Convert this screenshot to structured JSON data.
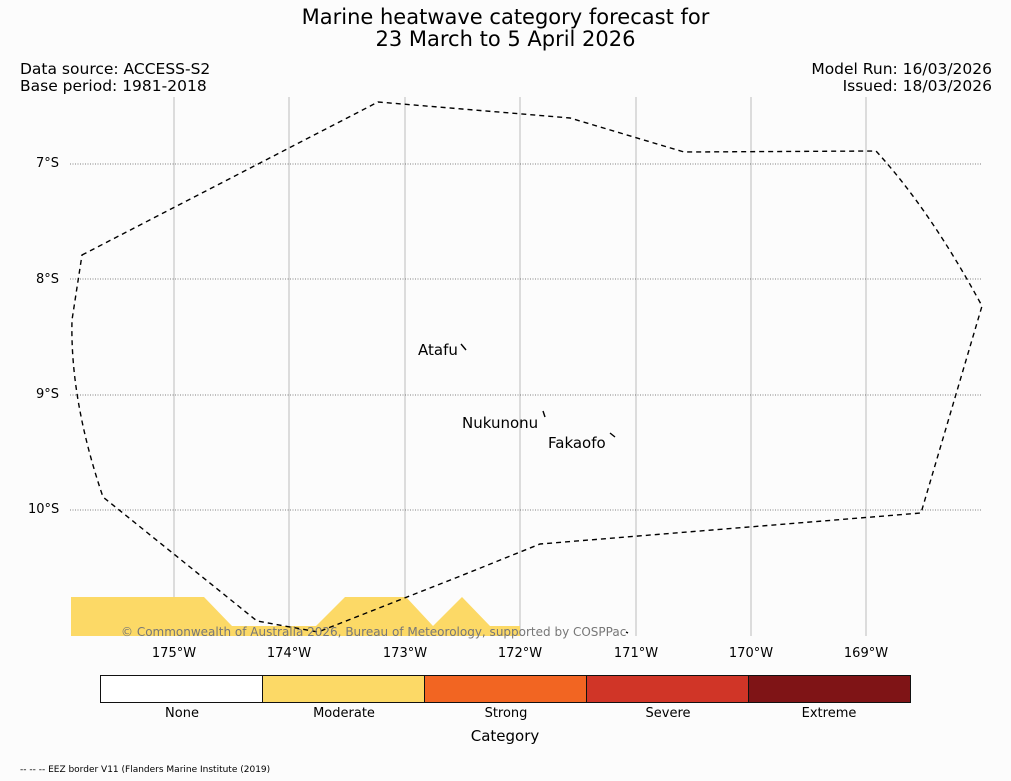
{
  "header": {
    "title_line1": "Marine heatwave category forecast for",
    "title_line2": "23 March to 5 April 2026",
    "data_source": "Data source: ACCESS-S2",
    "base_period": "Base period: 1981-2018",
    "model_run": "Model Run: 16/03/2026",
    "issued": "Issued: 18/03/2026"
  },
  "map": {
    "lat_labels": [
      "7°S",
      "8°S",
      "9°S",
      "10°S"
    ],
    "lon_labels": [
      "175°W",
      "174°W",
      "173°W",
      "172°W",
      "171°W",
      "170°W",
      "169°W"
    ],
    "places": [
      "Atafu",
      "Nukunonu",
      "Fakaofo"
    ],
    "credit": "© Commonwealth of Australia 2026, Bureau of Meteorology, supported by COSPPac",
    "moderate_region_category": "Moderate"
  },
  "legend": {
    "title": "Category",
    "categories": [
      {
        "label": "None",
        "color": "#ffffff"
      },
      {
        "label": "Moderate",
        "color": "#fcd966"
      },
      {
        "label": "Strong",
        "color": "#f26522"
      },
      {
        "label": "Severe",
        "color": "#d03527"
      },
      {
        "label": "Extreme",
        "color": "#7f1416"
      }
    ]
  },
  "footer": {
    "eez_note": "-- -- -- EEZ border V11 (Flanders Marine Institute (2019)"
  }
}
